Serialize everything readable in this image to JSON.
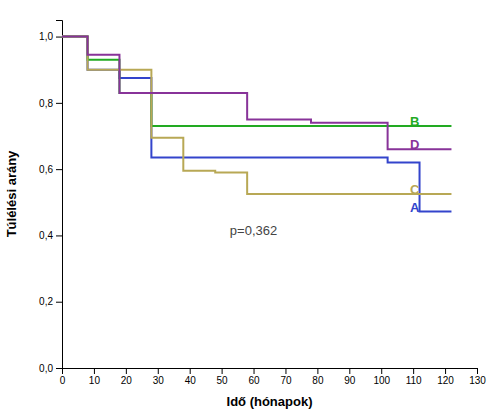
{
  "chart_data": {
    "type": "line",
    "x_label": "Idő (hónapok)",
    "y_label": "Túlélési arány",
    "xlim": [
      0,
      130
    ],
    "ylim": [
      0.0,
      1.05
    ],
    "xticks": [
      0,
      10,
      20,
      30,
      40,
      50,
      60,
      70,
      80,
      90,
      100,
      110,
      120,
      130
    ],
    "yticks": [
      {
        "value": 0.0,
        "label": "0,0"
      },
      {
        "value": 0.2,
        "label": "0,2"
      },
      {
        "value": 0.4,
        "label": "0,4"
      },
      {
        "value": 0.6,
        "label": "0,6"
      },
      {
        "value": 0.8,
        "label": "0,8"
      },
      {
        "value": 1.0,
        "label": "1,0"
      }
    ],
    "grid": false,
    "series": [
      {
        "name": "A",
        "color": "#3344cc",
        "x": [
          0,
          8,
          8,
          18,
          18,
          28,
          28,
          40,
          40,
          102,
          102,
          112,
          112,
          122
        ],
        "values": [
          1.0,
          1.0,
          0.9,
          0.9,
          0.875,
          0.875,
          0.635,
          0.635,
          0.635,
          0.635,
          0.62,
          0.62,
          0.472,
          0.472
        ]
      },
      {
        "name": "B",
        "color": "#22aa22",
        "x": [
          0,
          8,
          8,
          18,
          18,
          28,
          28,
          122
        ],
        "values": [
          1.0,
          1.0,
          0.93,
          0.93,
          0.83,
          0.83,
          0.73,
          0.73
        ]
      },
      {
        "name": "C",
        "color": "#b8a855",
        "x": [
          0,
          8,
          8,
          28,
          28,
          38,
          38,
          48,
          48,
          58,
          58,
          122
        ],
        "values": [
          1.0,
          1.0,
          0.9,
          0.9,
          0.695,
          0.695,
          0.595,
          0.595,
          0.59,
          0.59,
          0.525,
          0.525
        ]
      },
      {
        "name": "D",
        "color": "#883399",
        "x": [
          0,
          8,
          8,
          18,
          18,
          38,
          38,
          58,
          58,
          78,
          78,
          102,
          102,
          122
        ],
        "values": [
          1.0,
          1.0,
          0.945,
          0.945,
          0.83,
          0.83,
          0.83,
          0.83,
          0.75,
          0.75,
          0.74,
          0.74,
          0.66,
          0.66
        ]
      }
    ],
    "annotations": [
      {
        "text": "B",
        "x": 109,
        "y": 0.745,
        "color": "#22aa22"
      },
      {
        "text": "D",
        "x": 109,
        "y": 0.675,
        "color": "#883399"
      },
      {
        "text": "C",
        "x": 109,
        "y": 0.538,
        "color": "#b8a855"
      },
      {
        "text": "A",
        "x": 109,
        "y": 0.484,
        "color": "#3344cc"
      },
      {
        "text": "p=0,362",
        "x": 60,
        "y": 0.415
      }
    ]
  }
}
